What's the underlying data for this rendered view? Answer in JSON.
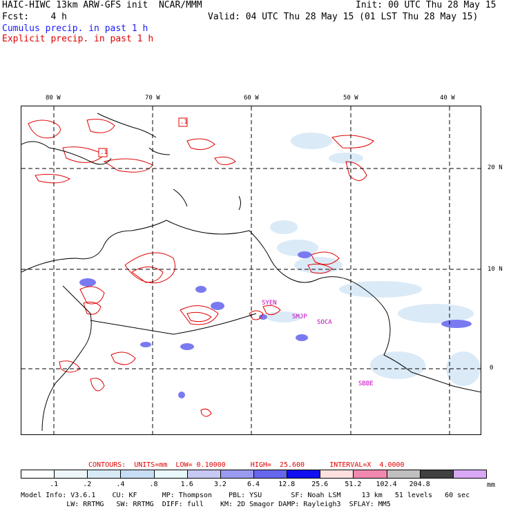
{
  "header": {
    "line1_left": "HAIC-HIWC 13km ARW-GFS init  NCAR/MMM",
    "line1_right": "Init: 00 UTC Thu 28 May 15",
    "line2_left": "Fcst:    4 h",
    "line2_right": "Valid: 04 UTC Thu 28 May 15 (01 LST Thu 28 May 15)",
    "legend_cumulus": "Cumulus precip. in past 1 h",
    "legend_explicit": "Explicit precip. in past 1 h"
  },
  "map": {
    "lon_labels": [
      "80 W",
      "70 W",
      "60 W",
      "50 W",
      "40 W"
    ],
    "lat_labels": [
      "20 N",
      "10 N",
      "0"
    ],
    "place_labels": [
      "SYEN",
      "SMJP",
      "SOCA",
      "SBBE"
    ],
    "contour_label": ".1",
    "colors": {
      "cumulus": "#1a1aff",
      "explicit": "#e00000",
      "land": "#000000",
      "grid": "#000000"
    }
  },
  "contours_info": {
    "text": "CONTOURS:  UNITS=mm  LOW= 0.10000      HIGH=  25.600      INTERVAL=X  4.0000"
  },
  "colorbar": {
    "ticks": [
      ".1",
      ".2",
      ".4",
      ".8",
      "1.6",
      "3.2",
      "6.4",
      "12.8",
      "25.6",
      "51.2",
      "102.4",
      "204.8"
    ],
    "unit": "mm",
    "colors": [
      "#ffffff",
      "#eef6fb",
      "#d8eaf6",
      "#c7ddf5",
      "#e8f8fb",
      "#c8c8f4",
      "#9a9af0",
      "#6666ee",
      "#1010f0",
      "#ffe0e0",
      "#f088b0",
      "#c0c0c0",
      "#404040",
      "#d8a8f4"
    ]
  },
  "footer": {
    "line1": "Model Info: V3.6.1    CU: KF      MP: Thompson    PBL: YSU       SF: Noah LSM     13 km   51 levels   60 sec",
    "line2": "           LW: RRTMG   SW: RRTMG  DIFF: full    KM: 2D Smagor DAMP: Rayleigh3  SFLAY: MM5"
  }
}
